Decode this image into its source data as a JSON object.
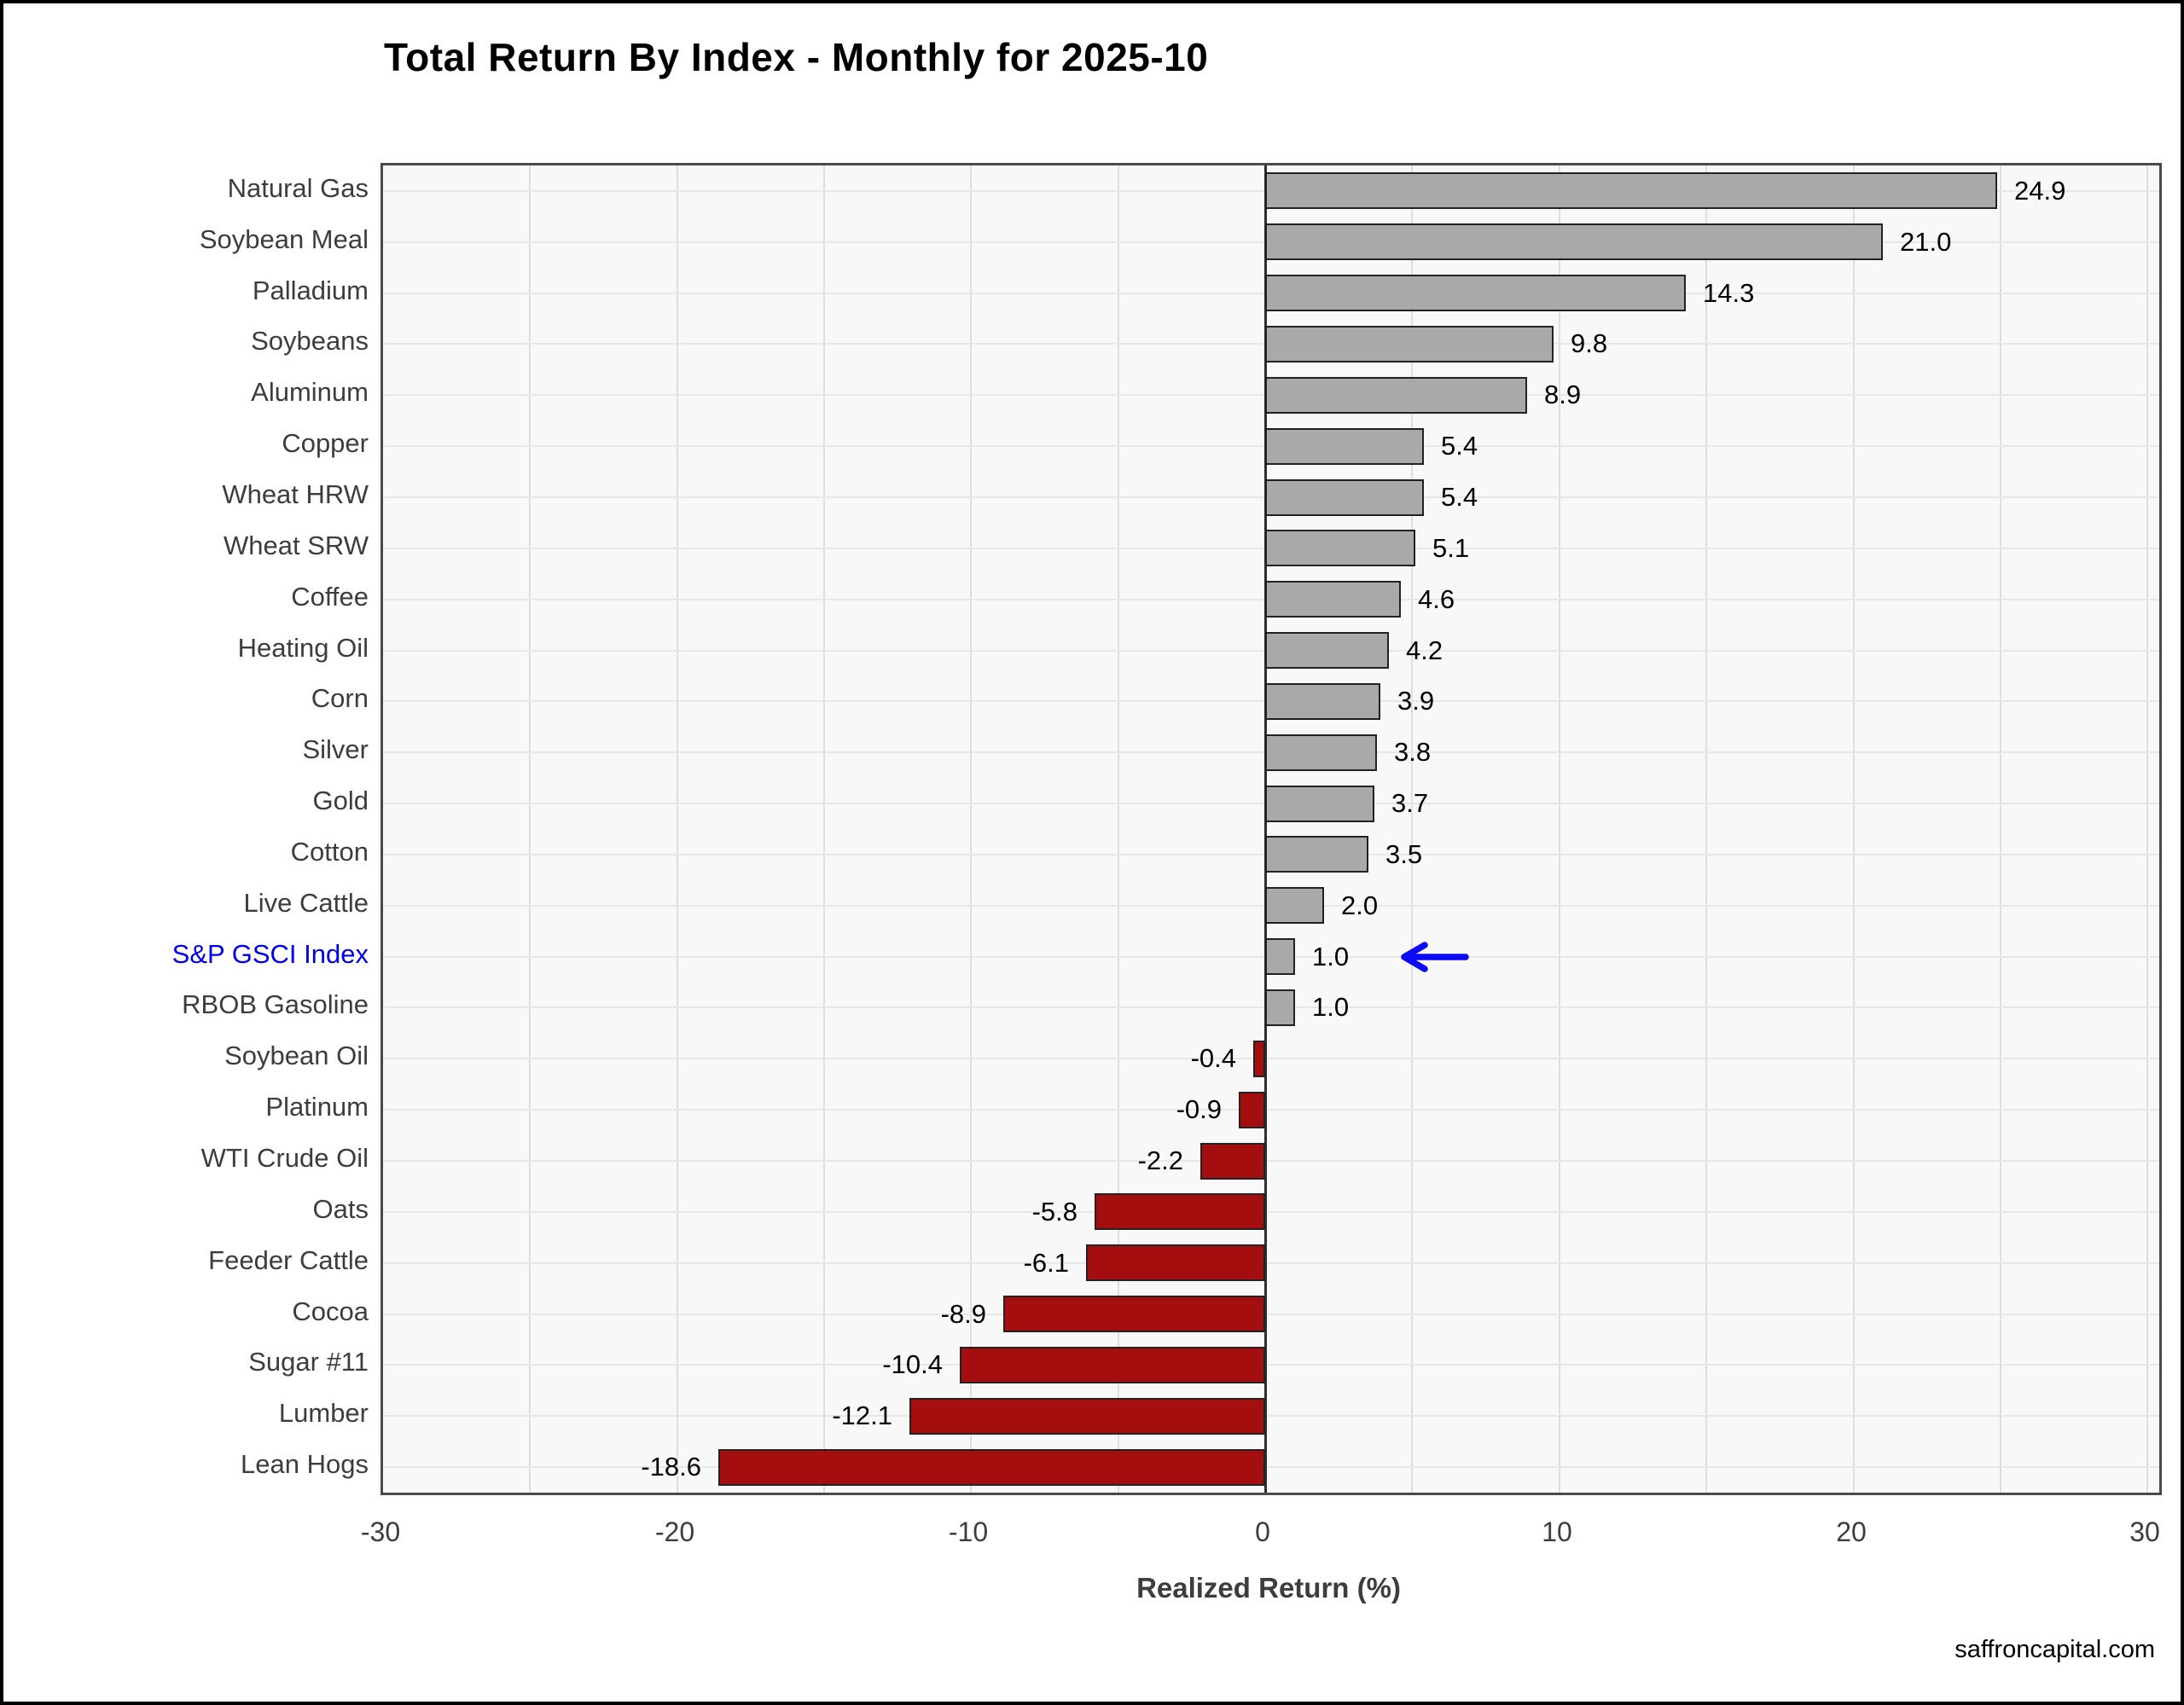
{
  "title": "Total Return By Index - Monthly for 2025-10",
  "watermark": "saffroncapital.com",
  "chart_data": {
    "type": "bar",
    "orientation": "horizontal",
    "title": "Total Return By Index - Monthly for 2025-10",
    "xlabel": "Realized Return (%)",
    "xlim": [
      -30,
      30.4
    ],
    "xticks": [
      -30,
      -20,
      -10,
      0,
      10,
      20,
      30
    ],
    "grid": true,
    "gridline_step": 5,
    "categories": [
      "Natural Gas",
      "Soybean Meal",
      "Palladium",
      "Soybeans",
      "Aluminum",
      "Copper",
      "Wheat HRW",
      "Wheat SRW",
      "Coffee",
      "Heating Oil",
      "Corn",
      "Silver",
      "Gold",
      "Cotton",
      "Live Cattle",
      "S&P GSCI Index",
      "RBOB Gasoline",
      "Soybean Oil",
      "Platinum",
      "WTI Crude Oil",
      "Oats",
      "Feeder Cattle",
      "Cocoa",
      "Sugar #11",
      "Lumber",
      "Lean Hogs"
    ],
    "values": [
      24.9,
      21.0,
      14.3,
      9.8,
      8.9,
      5.4,
      5.4,
      5.1,
      4.6,
      4.2,
      3.9,
      3.8,
      3.7,
      3.5,
      2.0,
      1.0,
      1.0,
      -0.4,
      -0.9,
      -2.2,
      -5.8,
      -6.1,
      -8.9,
      -10.4,
      -12.1,
      -18.6
    ],
    "value_labels": [
      "24.9",
      "21.0",
      "14.3",
      "9.8",
      "8.9",
      "5.4",
      "5.4",
      "5.1",
      "4.6",
      "4.2",
      "3.9",
      "3.8",
      "3.7",
      "3.5",
      "2.0",
      "1.0",
      "1.0",
      "-0.4",
      "-0.9",
      "-2.2",
      "-5.8",
      "-6.1",
      "-8.9",
      "-10.4",
      "-12.1",
      "-18.6"
    ],
    "highlight": {
      "category": "S&P GSCI Index",
      "index": 15,
      "label_color": "#0000F0",
      "arrow": true,
      "arrow_color": "#0A0AF5",
      "arrow_icon": "left-arrow-icon"
    },
    "colors": {
      "positive_bar": "#A9A9A9",
      "negative_bar": "#A40E0E",
      "bar_border": "#222222",
      "plot_background": "#F8F8F8",
      "zero_line": "#2e2e2e"
    },
    "legend": null
  }
}
